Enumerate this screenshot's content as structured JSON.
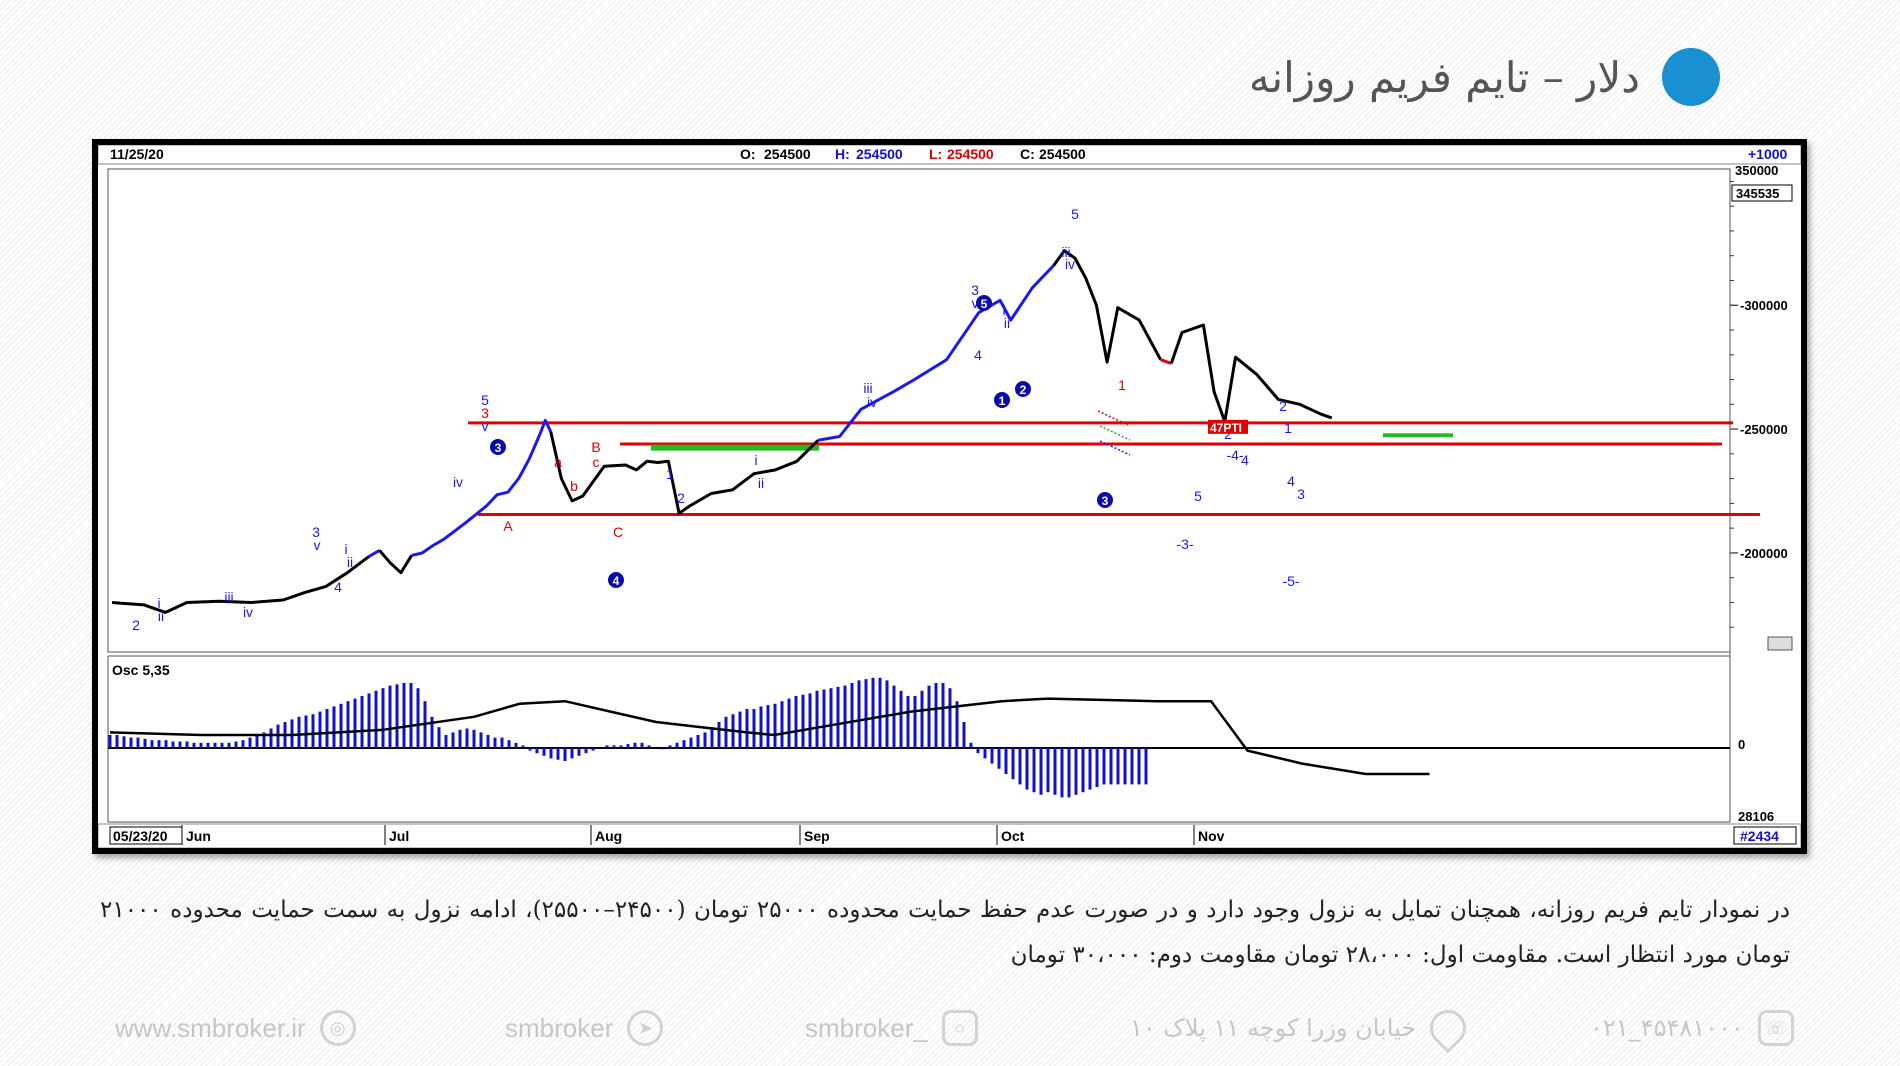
{
  "page": {
    "title": "دلار – تایم فریم روزانه",
    "accent_color": "#1a8fd1"
  },
  "chart_header": {
    "date": "11/25/20",
    "open_label": "O:",
    "open": "254500",
    "high_label": "H:",
    "high": "254500",
    "low_label": "L:",
    "low": "254500",
    "close_label": "C:",
    "close": "254500",
    "scale_step": "+1000",
    "last_price_tag": "345535",
    "start_date": "05/23/20",
    "bar_count": "#2434",
    "osc_label": "Osc 5,35",
    "osc_zero_label": "0",
    "osc_bottom_label": "28106"
  },
  "chart_data": [
    {
      "type": "line",
      "panel": "price",
      "months": [
        "Jun",
        "Jul",
        "Aug",
        "Sep",
        "Oct",
        "Nov"
      ],
      "y_ticks": [
        200000,
        250000,
        300000
      ],
      "y_tick_labels": [
        "200000",
        "250000",
        "300000"
      ],
      "ylim": [
        160000,
        355000
      ],
      "y_top_label": "350000",
      "grid": false,
      "series": [
        {
          "points": [
            [
              0,
              180000
            ],
            [
              6,
              179000
            ],
            [
              10,
              176000
            ],
            [
              14,
              180000
            ],
            [
              20,
              180500
            ],
            [
              26,
              180000
            ],
            [
              32,
              181000
            ],
            [
              36,
              184000
            ],
            [
              40,
              186500
            ],
            [
              44,
              192000
            ],
            [
              48,
              198500
            ],
            [
              50,
              201000
            ],
            [
              52,
              196000
            ],
            [
              54,
              192000
            ],
            [
              56,
              199000
            ],
            [
              58,
              200000
            ],
            [
              60,
              203000
            ],
            [
              62,
              205500
            ],
            [
              66,
              212000
            ],
            [
              70,
              219000
            ],
            [
              72,
              223500
            ],
            [
              74,
              224500
            ],
            [
              76,
              230000
            ],
            [
              78,
              238000
            ],
            [
              80,
              248000
            ],
            [
              81,
              253500
            ],
            [
              82,
              249000
            ],
            [
              84,
              230000
            ],
            [
              86,
              221000
            ],
            [
              88,
              223000
            ],
            [
              92,
              235000
            ],
            [
              96,
              235500
            ],
            [
              98,
              233500
            ],
            [
              100,
              237000
            ],
            [
              102,
              236500
            ],
            [
              104,
              237000
            ],
            [
              106,
              216000
            ],
            [
              108,
              219000
            ],
            [
              112,
              224000
            ],
            [
              116,
              225500
            ],
            [
              120,
              232000
            ],
            [
              124,
              233500
            ],
            [
              128,
              237000
            ],
            [
              132,
              245500
            ],
            [
              136,
              247000
            ],
            [
              140,
              258000
            ],
            [
              146,
              265000
            ],
            [
              150,
              270000
            ],
            [
              156,
              278000
            ],
            [
              162,
              297000
            ],
            [
              166,
              302000
            ],
            [
              168,
              294000
            ],
            [
              172,
              307000
            ],
            [
              176,
              316000
            ],
            [
              178,
              322000
            ],
            [
              180,
              319000
            ],
            [
              182,
              311000
            ],
            [
              184,
              300000
            ],
            [
              186,
              277000
            ],
            [
              188,
              299000
            ],
            [
              192,
              294000
            ],
            [
              196,
              278000
            ],
            [
              198,
              276500
            ],
            [
              200,
              289000
            ],
            [
              204,
              292000
            ],
            [
              206,
              265000
            ],
            [
              208,
              253000
            ],
            [
              210,
              279000
            ],
            [
              214,
              272000
            ],
            [
              218,
              262000
            ],
            [
              222,
              260000
            ],
            [
              226,
              256000
            ],
            [
              228,
              254500
            ]
          ],
          "segment_colors": [
            [
              "black",
              0,
              48
            ],
            [
              "blue",
              48,
              50
            ],
            [
              "black",
              50,
              56
            ],
            [
              "blue",
              56,
              82
            ],
            [
              "black",
              82,
              132
            ],
            [
              "blue",
              132,
              176
            ],
            [
              "black",
              176,
              196
            ],
            [
              "red",
              196,
              198
            ],
            [
              "black",
              198,
              228
            ]
          ]
        }
      ]
    },
    {
      "type": "bar",
      "panel": "oscillator",
      "grid": false,
      "series": [
        {
          "name": "Osc 5,35",
          "color": "#1111cc",
          "values": [
            5,
            5,
            4.5,
            4,
            4,
            3.5,
            3,
            3,
            3,
            2.5,
            2.5,
            2.5,
            2,
            2,
            2,
            2,
            2,
            2,
            2.5,
            3,
            4,
            5,
            6,
            7.5,
            9,
            10,
            11,
            12,
            12.5,
            13,
            14,
            15,
            16,
            17,
            18,
            19,
            20,
            21,
            22,
            23,
            24,
            24.5,
            25,
            25,
            23,
            18,
            12,
            8,
            5,
            6,
            7,
            7.5,
            7,
            6,
            5,
            4,
            4,
            3,
            2,
            1,
            -1,
            -2,
            -3,
            -4,
            -4.5,
            -5,
            -4,
            -3,
            -2,
            -1,
            0,
            1,
            1,
            1,
            1.5,
            2,
            2,
            1,
            0,
            -0.5,
            1,
            2,
            3,
            4,
            5,
            6,
            8,
            10,
            12,
            13,
            14,
            15,
            15,
            16,
            16.5,
            17,
            18,
            19,
            20,
            20.5,
            21,
            22,
            22.5,
            23,
            23.5,
            24,
            25,
            26,
            26.5,
            27,
            27,
            26,
            24,
            22,
            20,
            20,
            22,
            24,
            25,
            25,
            23,
            18,
            10,
            2,
            -2,
            -4,
            -6,
            -8,
            -10,
            -12,
            -14,
            -16,
            -17,
            -18,
            -17,
            -18,
            -19,
            -19,
            -18,
            -17,
            -16,
            -15,
            -14,
            -14,
            -14,
            -14,
            -14,
            -14,
            -14
          ]
        },
        {
          "name": "signal",
          "color": "#000000",
          "points": [
            [
              0,
              6
            ],
            [
              20,
              5
            ],
            [
              40,
              5
            ],
            [
              60,
              7
            ],
            [
              80,
              12
            ],
            [
              90,
              17
            ],
            [
              100,
              18
            ],
            [
              110,
              14
            ],
            [
              120,
              10
            ],
            [
              130,
              8
            ],
            [
              140,
              6
            ],
            [
              146,
              5
            ],
            [
              156,
              8
            ],
            [
              176,
              14
            ],
            [
              196,
              18
            ],
            [
              206,
              19
            ],
            [
              230,
              18
            ],
            [
              242,
              18
            ],
            [
              250,
              -1
            ],
            [
              262,
              -6
            ],
            [
              276,
              -10
            ],
            [
              290,
              -10
            ]
          ]
        }
      ],
      "ylim": [
        -30,
        30
      ]
    }
  ],
  "annotations": {
    "wave_labels": [
      "2",
      "i",
      "ii",
      "iii",
      "iv",
      "3",
      "v",
      "4",
      "i",
      "ii",
      "iv",
      "3",
      "5",
      "v",
      "A",
      "a",
      "b",
      "B",
      "c",
      "C",
      "1",
      "2",
      "i",
      "ii",
      "iii",
      "iv",
      "3",
      "v",
      "4",
      "i",
      "ii",
      "iii",
      "iv",
      "5",
      "1",
      "2",
      "-4-",
      "4",
      "2",
      "1",
      "3",
      "4",
      "5",
      "-3-",
      "-5-"
    ],
    "circled_labels": [
      "3",
      "4",
      "5",
      "1",
      "2",
      "3"
    ],
    "target_tag": "47PTI",
    "support_resistance_lines": [
      252500,
      244000,
      215500
    ]
  },
  "caption": "در نمودار تایم فریم روزانه، همچنان تمایل به نزول وجود دارد و در صورت عدم حفظ حمایت محدوده ۲۵۰۰۰ تومان (۲۴۵۰۰–۲۵۵۰۰)، ادامه نزول به سمت حمایت محدوده ۲۱۰۰۰ تومان مورد انتظار است. مقاومت اول: ۲۸،۰۰۰ تومان مقاومت دوم: ۳۰،۰۰۰ تومان",
  "footer": {
    "website": "www.smbroker.ir",
    "telegram": "smbroker",
    "instagram": "smbroker_",
    "address": "خیابان وزرا کوچه ۱۱ پلاک ۱۰",
    "phone": "۰۲۱_۴۵۴۸۱۰۰۰"
  }
}
